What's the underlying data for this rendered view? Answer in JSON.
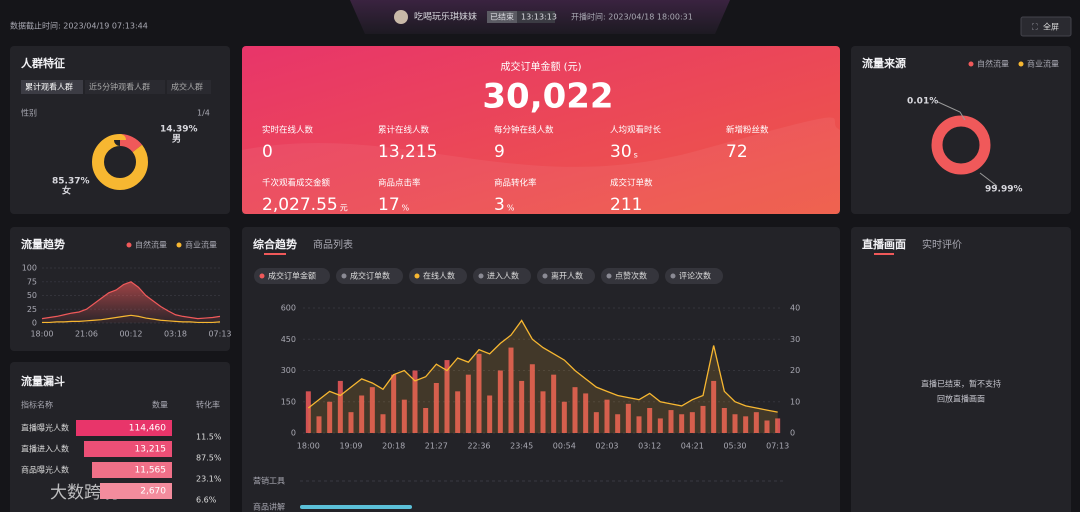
{
  "header": {
    "data_time": "数据截止时间: 2023/04/19 07:13:44",
    "streamer": "吃喝玩乐琪妹妹",
    "status": "已结束",
    "duration": "13:13:13",
    "start_time": "开播时间: 2023/04/18 18:00:31",
    "fullscreen": "全屏"
  },
  "crowd": {
    "title": "人群特征",
    "tabs": [
      "累计观看人群",
      "近5分钟观看人群",
      "成交人群"
    ],
    "label": "性别",
    "pager": "1/4",
    "chart": {
      "type": "pie",
      "slices": [
        {
          "name": "男",
          "value": 14.39,
          "value_label": "14.39%",
          "color": "#f0595a"
        },
        {
          "name": "女",
          "value": 85.37,
          "value_label": "85.37%",
          "color": "#f7b731"
        }
      ]
    }
  },
  "kpi": {
    "title": "成交订单金额 (元)",
    "value": "30,022",
    "metrics": [
      {
        "label": "实时在线人数",
        "value": "0"
      },
      {
        "label": "累计在线人数",
        "value": "13,215"
      },
      {
        "label": "每分钟在线人数",
        "value": "9"
      },
      {
        "label": "人均观看时长",
        "value": "30",
        "unit": "s"
      },
      {
        "label": "新增粉丝数",
        "value": "72"
      },
      {
        "label": "千次观看成交金额",
        "value": "2,027.55",
        "unit": "元"
      },
      {
        "label": "商品点击率",
        "value": "17",
        "unit": "%"
      },
      {
        "label": "商品转化率",
        "value": "3",
        "unit": "%"
      },
      {
        "label": "成交订单数",
        "value": "211"
      }
    ]
  },
  "source": {
    "title": "流量来源",
    "legend": [
      {
        "name": "自然流量",
        "color": "#f0595a"
      },
      {
        "name": "商业流量",
        "color": "#f7b731"
      }
    ],
    "chart": {
      "type": "pie",
      "slices": [
        {
          "name": "自然流量",
          "value": 99.99,
          "value_label": "99.99%",
          "color": "#f0595a"
        },
        {
          "name": "商业流量",
          "value": 0.01,
          "value_label": "0.01%",
          "color": "#f7b731"
        }
      ]
    }
  },
  "trend": {
    "title": "流量趋势",
    "chart": {
      "type": "line",
      "categories": [
        "18:00",
        null,
        null,
        null,
        null,
        null,
        "21:06",
        null,
        null,
        null,
        null,
        null,
        "00:12",
        null,
        null,
        null,
        null,
        null,
        "03:18",
        null,
        null,
        null,
        null,
        null,
        "07:13"
      ],
      "ylim": [
        0,
        100
      ],
      "yticks": [
        0,
        25,
        50,
        75,
        100
      ],
      "series": [
        {
          "name": "自然流量",
          "color": "#f0595a",
          "values": [
            8,
            10,
            12,
            15,
            18,
            20,
            25,
            35,
            45,
            55,
            60,
            70,
            75,
            65,
            50,
            40,
            30,
            22,
            15,
            12,
            10,
            8,
            9,
            10,
            12
          ]
        },
        {
          "name": "商业流量",
          "color": "#f7b731",
          "values": [
            1,
            1,
            2,
            2,
            3,
            3,
            4,
            5,
            6,
            8,
            10,
            12,
            14,
            12,
            9,
            7,
            5,
            4,
            3,
            2,
            2,
            1,
            1,
            1,
            2
          ]
        }
      ]
    }
  },
  "funnel": {
    "title": "流量漏斗",
    "headers": [
      "指标名称",
      "数量",
      "转化率"
    ],
    "rows": [
      {
        "name": "直播曝光人数",
        "value": "114,460"
      },
      {
        "name": "直播进入人数",
        "value": "13,215"
      },
      {
        "name": "商品曝光人数",
        "value": "11,565"
      },
      {
        "value": "2,670"
      }
    ],
    "rates": [
      "11.5%",
      "87.5%",
      "23.1%",
      "6.6%"
    ]
  },
  "overview": {
    "tabs": [
      "综合趋势",
      "商品列表"
    ],
    "chips": [
      {
        "label": "成交订单金额",
        "color": "#f0595a"
      },
      {
        "label": "成交订单数",
        "color": "#8a8a94"
      },
      {
        "label": "在线人数",
        "color": "#f7b731"
      },
      {
        "label": "进入人数",
        "color": "#8a8a94"
      },
      {
        "label": "离开人数",
        "color": "#8a8a94"
      },
      {
        "label": "点赞次数",
        "color": "#8a8a94"
      },
      {
        "label": "评论次数",
        "color": "#8a8a94"
      }
    ],
    "chart": {
      "type": "bar-line",
      "categories": [
        "18:00",
        null,
        null,
        null,
        "19:09",
        null,
        null,
        null,
        "20:18",
        null,
        null,
        null,
        "21:27",
        null,
        null,
        null,
        "22:36",
        null,
        null,
        null,
        "23:45",
        null,
        null,
        null,
        "00:54",
        null,
        null,
        null,
        "02:03",
        null,
        null,
        null,
        "03:12",
        null,
        null,
        null,
        "04:21",
        null,
        null,
        null,
        "05:30",
        null,
        null,
        null,
        "07:13"
      ],
      "ylim": [
        0,
        600
      ],
      "yticks": [
        0,
        150,
        300,
        450,
        600
      ],
      "y2lim": [
        0,
        40
      ],
      "y2ticks": [
        0,
        10,
        20,
        30,
        40
      ],
      "series": [
        {
          "name": "成交订单金额",
          "type": "bar",
          "color": "#f0595a",
          "values": [
            200,
            80,
            150,
            250,
            100,
            180,
            220,
            90,
            280,
            160,
            300,
            120,
            240,
            350,
            200,
            280,
            380,
            180,
            300,
            410,
            250,
            330,
            200,
            280,
            150,
            220,
            190,
            100,
            160,
            90,
            140,
            80,
            120,
            70,
            110,
            90,
            100,
            130,
            250,
            120,
            90,
            80,
            100,
            60,
            70
          ]
        },
        {
          "name": "在线人数",
          "type": "line",
          "color": "#f7b731",
          "values": [
            120,
            160,
            200,
            180,
            220,
            260,
            240,
            210,
            280,
            300,
            250,
            270,
            330,
            300,
            360,
            340,
            400,
            380,
            430,
            470,
            540,
            450,
            410,
            380,
            350,
            300,
            260,
            220,
            200,
            180,
            170,
            160,
            190,
            150,
            140,
            130,
            160,
            180,
            420,
            200,
            150,
            130,
            120,
            110,
            100
          ]
        }
      ]
    },
    "rows": [
      "营销工具",
      "商品讲解"
    ]
  },
  "live": {
    "tabs": [
      "直播画面",
      "实时评价"
    ],
    "message": [
      "直播已结束，暂不支持",
      "回放直播画面"
    ]
  },
  "watermark": "大数跨境"
}
